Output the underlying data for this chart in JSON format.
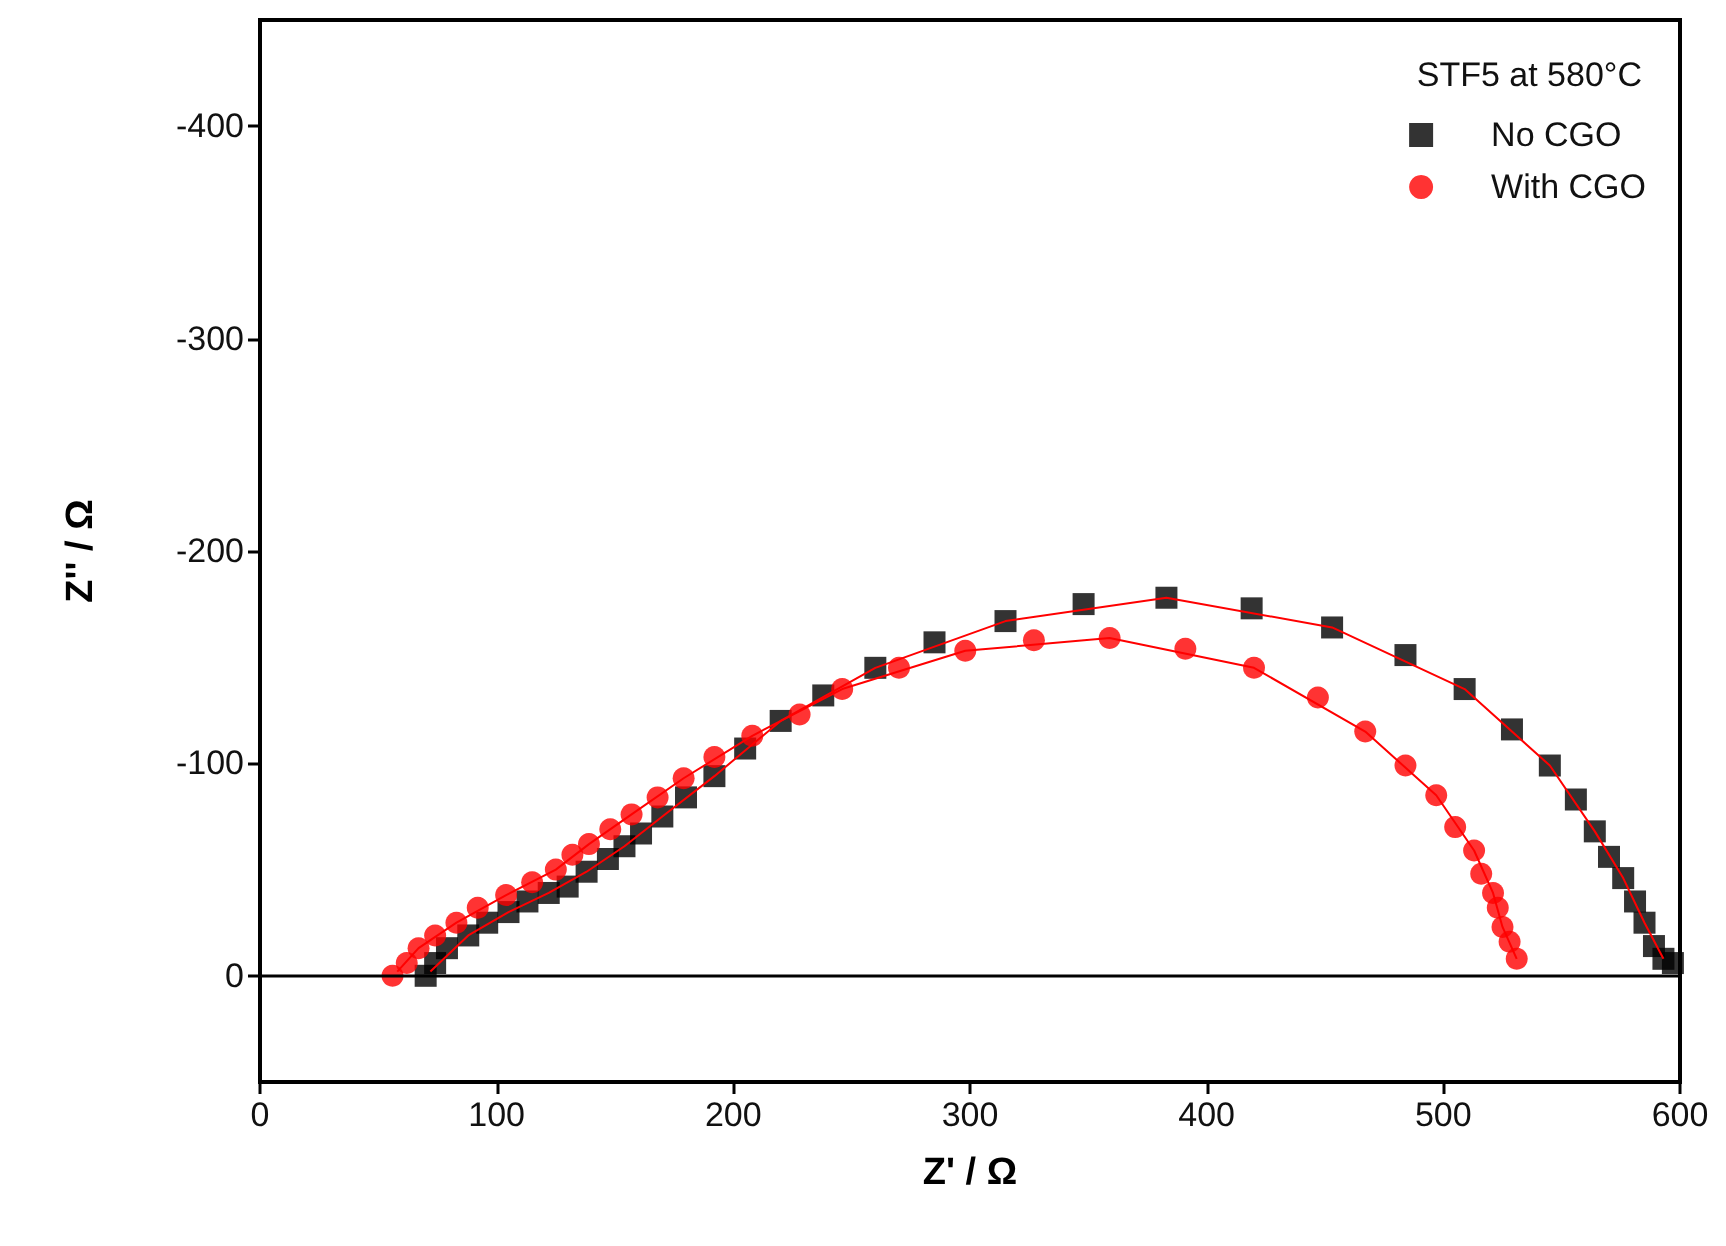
{
  "chart_data": {
    "type": "scatter",
    "xlabel": "Z' / Ω",
    "ylabel": "Z'' / Ω",
    "legend_title": "STF5 at 580°C",
    "legend": "top right",
    "grid": false,
    "xlim": [
      0,
      600
    ],
    "xticks": [
      0,
      100,
      200,
      300,
      400,
      500,
      600
    ],
    "ylim": [
      50,
      -450
    ],
    "yticks": [
      -400,
      -300,
      -200,
      -100,
      0
    ],
    "ref_lines": [
      {
        "axis": "y",
        "value": 0,
        "color": "#000000"
      }
    ],
    "series": [
      {
        "name": "No CGO",
        "color": "#000000",
        "marker": "square",
        "x": [
          70,
          74,
          79,
          88,
          96,
          105,
          113,
          122,
          130,
          138,
          147,
          154,
          161,
          170,
          180,
          192,
          205,
          220,
          238,
          260,
          285,
          315,
          348,
          383,
          419,
          453,
          484,
          509,
          529,
          545,
          556,
          564,
          570,
          576,
          581,
          585,
          589,
          593,
          597
        ],
        "values": [
          0,
          -6,
          -13,
          -19,
          -25,
          -30,
          -35,
          -39,
          -42,
          -49,
          -55,
          -61,
          -67,
          -75,
          -84,
          -94,
          -107,
          -120,
          -132,
          -145,
          -157,
          -167,
          -175,
          -178,
          -173,
          -164,
          -151,
          -135,
          -116,
          -99,
          -83,
          -68,
          -56,
          -46,
          -35,
          -25,
          -14,
          -8,
          -6
        ]
      },
      {
        "name": "With CGO",
        "color": "#ff0000",
        "marker": "circle",
        "x": [
          56,
          62,
          67,
          74,
          83,
          92,
          104,
          115,
          125,
          132,
          139,
          148,
          157,
          168,
          179,
          192,
          208,
          228,
          246,
          270,
          298,
          327,
          359,
          391,
          420,
          447,
          467,
          484,
          497,
          505,
          513,
          516,
          521,
          523,
          525,
          528,
          531
        ],
        "values": [
          0,
          -6,
          -13,
          -19,
          -25,
          -32,
          -38,
          -44,
          -50,
          -57,
          -62,
          -69,
          -76,
          -84,
          -93,
          -103,
          -113,
          -123,
          -135,
          -145,
          -153,
          -158,
          -159,
          -154,
          -145,
          -131,
          -115,
          -99,
          -85,
          -70,
          -59,
          -48,
          -39,
          -32,
          -23,
          -16,
          -8
        ]
      },
      {
        "type": "line",
        "color": "#ff0000",
        "marker": "none",
        "x": [
          72,
          88,
          105,
          122,
          138,
          154,
          170,
          192,
          220,
          260,
          315,
          383,
          453,
          509,
          545,
          564,
          576,
          585,
          593
        ],
        "values": [
          -2,
          -19,
          -30,
          -39,
          -49,
          -61,
          -75,
          -94,
          -120,
          -145,
          -167,
          -178,
          -164,
          -135,
          -99,
          -68,
          -46,
          -25,
          -8
        ]
      },
      {
        "type": "line",
        "color": "#ff0000",
        "marker": "none",
        "x": [
          58,
          67,
          83,
          104,
          125,
          139,
          157,
          179,
          208,
          246,
          298,
          359,
          420,
          467,
          497,
          513,
          521,
          525,
          531
        ],
        "values": [
          -2,
          -13,
          -25,
          -38,
          -50,
          -62,
          -76,
          -93,
          -113,
          -135,
          -153,
          -159,
          -145,
          -115,
          -85,
          -59,
          -39,
          -23,
          -8
        ]
      }
    ]
  }
}
